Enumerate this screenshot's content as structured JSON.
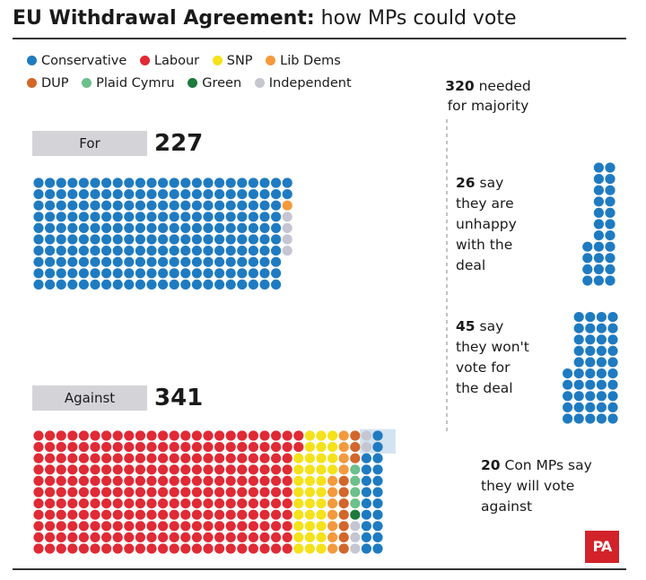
{
  "title": {
    "bold": "EU Withdrawal Agreement:",
    "rest": " how MPs could vote"
  },
  "legend": [
    {
      "label": "Conservative",
      "color": "#1f7bc1"
    },
    {
      "label": "Labour",
      "color": "#e02a35"
    },
    {
      "label": "SNP",
      "color": "#f5e21a"
    },
    {
      "label": "Lib Dems",
      "color": "#f39a3d"
    },
    {
      "label": "DUP",
      "color": "#d2662b"
    },
    {
      "label": "Plaid Cymru",
      "color": "#6cc08b"
    },
    {
      "label": "Green",
      "color": "#1c7a3c"
    },
    {
      "label": "Independent",
      "color": "#c5c6d2"
    }
  ],
  "majority": {
    "value": "320",
    "text": " needed",
    "line2": "for majority"
  },
  "for": {
    "label": "For",
    "total": "227"
  },
  "against": {
    "label": "Against",
    "total": "341"
  },
  "notes": {
    "unhappy": {
      "value": "26",
      "l1": " say",
      "l2": "they are",
      "l3": "unhappy",
      "l4": "with the",
      "l5": "deal"
    },
    "wont": {
      "value": "45",
      "l1": " say",
      "l2": "they won't",
      "l3": "vote for",
      "l4": "the deal"
    },
    "against_con": {
      "value": "20",
      "l1": " Con MPs say",
      "l2": "they will vote",
      "l3": "against"
    }
  },
  "logo": "PA",
  "chart_data": [
    {
      "type": "waffle",
      "title": "For",
      "total": 227,
      "series": [
        {
          "name": "Conservative",
          "value": 222,
          "color": "#1f7bc1"
        },
        {
          "name": "Lib Dems",
          "value": 1,
          "color": "#f39a3d"
        },
        {
          "name": "Independent",
          "value": 4,
          "color": "#c5c6d2"
        }
      ]
    },
    {
      "type": "waffle",
      "title": "Against",
      "total": 341,
      "series": [
        {
          "name": "Labour",
          "value": 255,
          "color": "#e02a35"
        },
        {
          "name": "SNP",
          "value": 35,
          "color": "#f5e21a"
        },
        {
          "name": "Lib Dems",
          "value": 11,
          "color": "#f39a3d"
        },
        {
          "name": "DUP",
          "value": 10,
          "color": "#d2662b"
        },
        {
          "name": "Plaid Cymru",
          "value": 4,
          "color": "#6cc08b"
        },
        {
          "name": "Green",
          "value": 1,
          "color": "#1c7a3c"
        },
        {
          "name": "Independent",
          "value": 5,
          "color": "#c5c6d2"
        },
        {
          "name": "Conservative",
          "value": 20,
          "color": "#1f7bc1"
        }
      ]
    },
    {
      "type": "waffle",
      "title": "say they are unhappy with the deal",
      "total": 26,
      "series": [
        {
          "name": "Conservative",
          "value": 26,
          "color": "#1f7bc1"
        }
      ]
    },
    {
      "type": "waffle",
      "title": "say they won't vote for the deal",
      "total": 45,
      "series": [
        {
          "name": "Conservative",
          "value": 45,
          "color": "#1f7bc1"
        }
      ]
    }
  ]
}
